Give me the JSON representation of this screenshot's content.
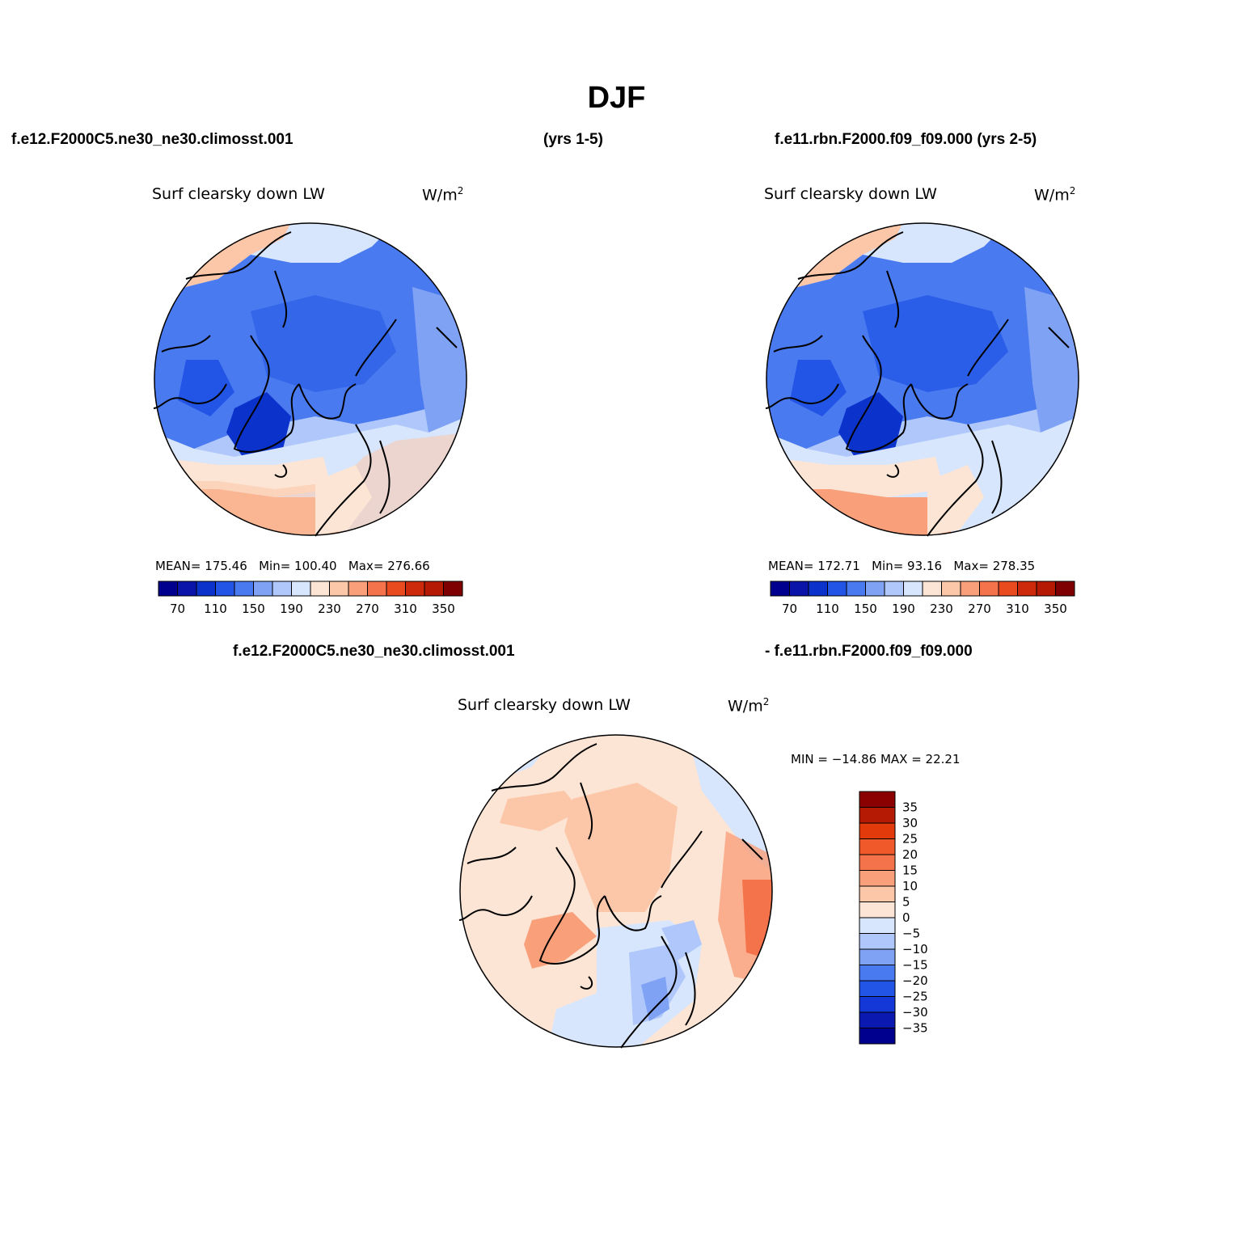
{
  "title": "DJF",
  "header": {
    "case_left": "f.e12.F2000C5.ne30_ne30.climosst.001",
    "years_left": "(yrs 1-5)",
    "case_right": "f.e11.rbn.F2000.f09_f09.000 (yrs 2-5)"
  },
  "panels": [
    {
      "variable": "Surf clearsky down LW",
      "units_base": "W/m",
      "units_exp": "2",
      "stats": {
        "mean_label": "MEAN=",
        "mean": "175.46",
        "min_label": "Min=",
        "min": "100.40",
        "max_label": "Max=",
        "max": "276.66"
      }
    },
    {
      "variable": "Surf clearsky down LW",
      "units_base": "W/m",
      "units_exp": "2",
      "stats": {
        "mean_label": "MEAN=",
        "mean": "172.71",
        "min_label": "Min=",
        "min": "93.16",
        "max_label": "Max=",
        "max": "278.35"
      }
    }
  ],
  "diff": {
    "case_a": "f.e12.F2000C5.ne30_ne30.climosst.001",
    "case_b": "- f.e11.rbn.F2000.f09_f09.000",
    "variable": "Surf clearsky down LW",
    "units_base": "W/m",
    "units_exp": "2",
    "minmax": "MIN = −14.86 MAX =  22.21"
  },
  "colorbar_main": {
    "colors": [
      "#00008e",
      "#0a14a8",
      "#0b33cc",
      "#2255e6",
      "#4a7af0",
      "#7fa2f5",
      "#afc7fa",
      "#d7e6fc",
      "#fde5d5",
      "#fcc6a8",
      "#f9a07a",
      "#f5734a",
      "#e94a1e",
      "#cc2a0a",
      "#b51a05",
      "#7f0000"
    ],
    "labels": [
      "70",
      "110",
      "150",
      "190",
      "230",
      "270",
      "310",
      "350"
    ]
  },
  "colorbar_diff": {
    "colors": [
      "#00008e",
      "#0a1ab0",
      "#1438d8",
      "#2255e6",
      "#4a7af0",
      "#7fa2f5",
      "#afc7fa",
      "#d7e6fc",
      "#fde5d5",
      "#fcc6a8",
      "#f9a07a",
      "#f5734a",
      "#f05a2a",
      "#e23a0a",
      "#b51a05",
      "#8b0000"
    ],
    "labels": [
      "35",
      "30",
      "25",
      "20",
      "15",
      "10",
      "5",
      "0",
      "−5",
      "−10",
      "−15",
      "−20",
      "−25",
      "−30",
      "−35"
    ]
  }
}
